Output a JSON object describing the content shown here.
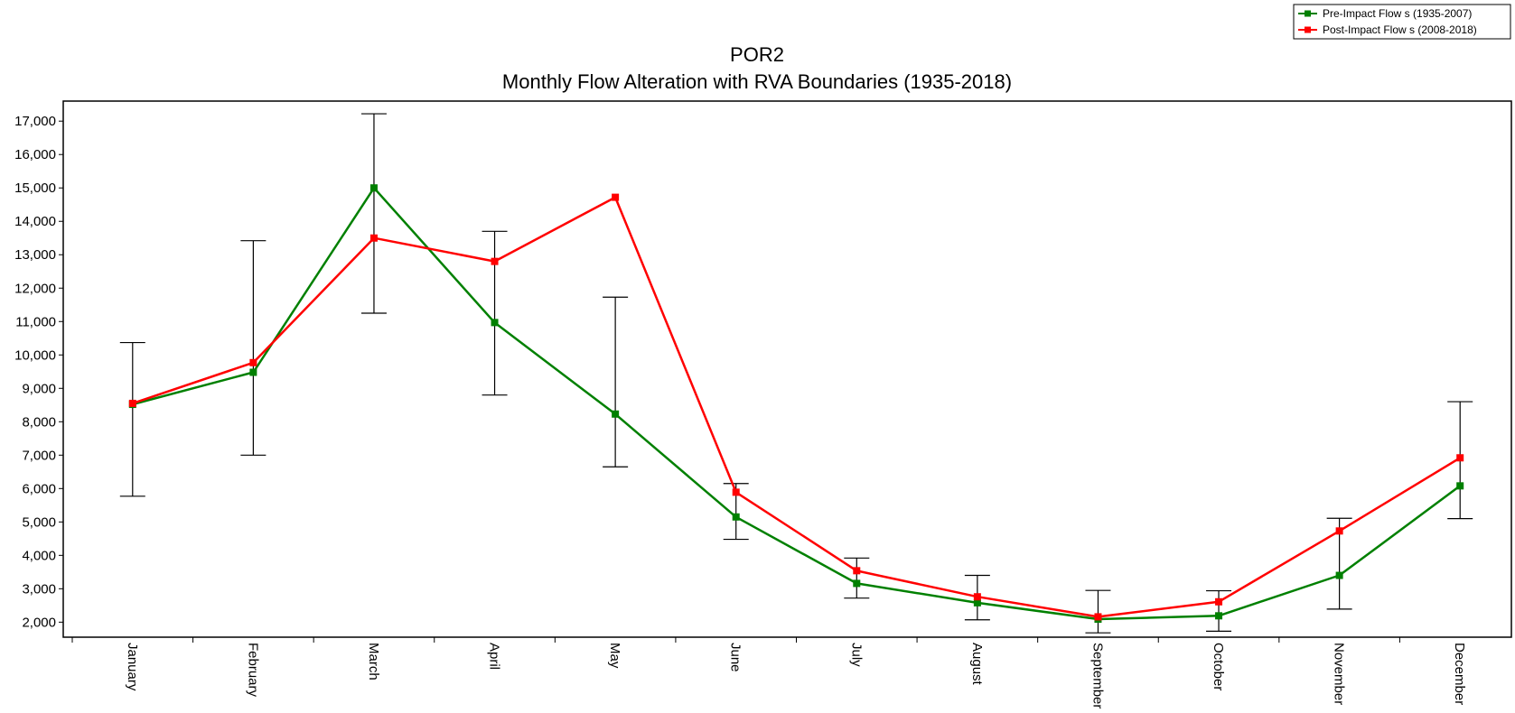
{
  "chart_data": {
    "type": "line",
    "title": "POR2",
    "subtitle": "Monthly Flow Alteration with RVA Boundaries (1935-2018)",
    "xlabel": "",
    "ylabel": "",
    "categories": [
      "January",
      "February",
      "March",
      "April",
      "May",
      "June",
      "July",
      "August",
      "September",
      "October",
      "November",
      "December"
    ],
    "ylim": [
      1550,
      17600
    ],
    "yticks": [
      2000,
      3000,
      4000,
      5000,
      6000,
      7000,
      8000,
      9000,
      10000,
      11000,
      12000,
      13000,
      14000,
      15000,
      16000,
      17000
    ],
    "ytick_labels": [
      "2,000",
      "3,000",
      "4,000",
      "5,000",
      "6,000",
      "7,000",
      "8,000",
      "9,000",
      "10,000",
      "11,000",
      "12,000",
      "13,000",
      "14,000",
      "15,000",
      "16,000",
      "17,000"
    ],
    "grid": false,
    "legend_position": "top-right",
    "series": [
      {
        "name": "Pre-Impact Flow s (1935-2007)",
        "color": "#008000",
        "values": [
          8520,
          9480,
          15000,
          10970,
          8230,
          5150,
          3160,
          2580,
          2090,
          2190,
          3400,
          6080
        ]
      },
      {
        "name": "Post-Impact Flow s (2008-2018)",
        "color": "#ff0000",
        "values": [
          8550,
          9770,
          13500,
          12800,
          14720,
          5890,
          3540,
          2760,
          2160,
          2610,
          4730,
          6920
        ]
      }
    ],
    "rva_boundaries": {
      "color": "#000000",
      "low": [
        5770,
        7000,
        11250,
        8800,
        6650,
        4480,
        2720,
        2070,
        1680,
        1730,
        2390,
        5100
      ],
      "high": [
        10370,
        13420,
        17220,
        13700,
        11730,
        6150,
        3920,
        3400,
        2950,
        2940,
        5110,
        8600
      ]
    }
  }
}
